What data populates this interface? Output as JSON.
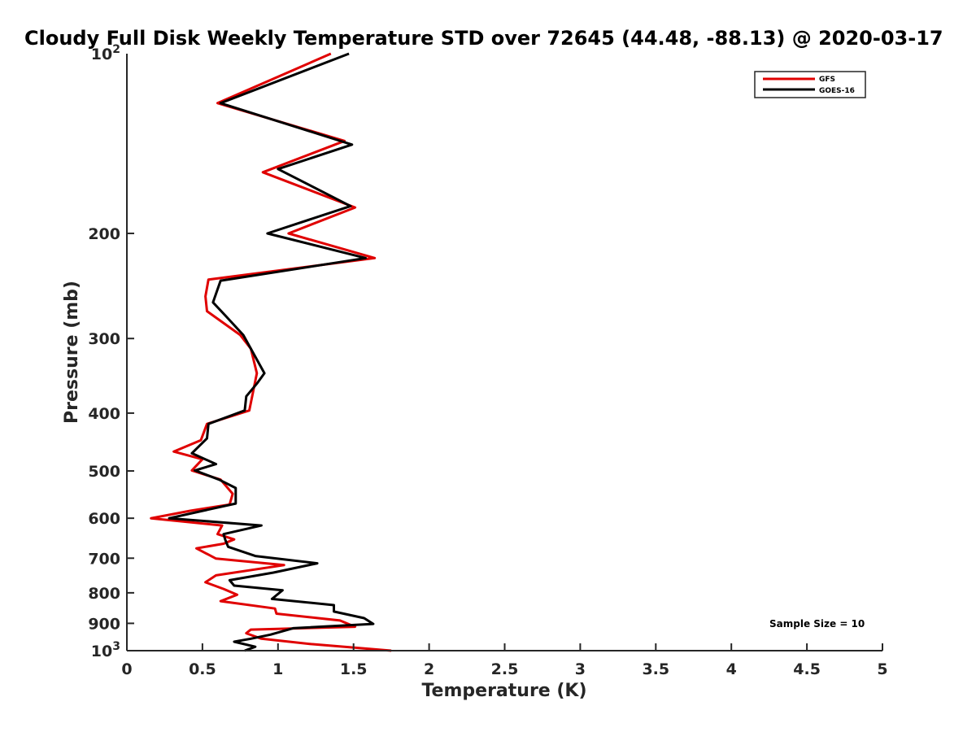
{
  "chart_data": {
    "type": "line",
    "title": "Cloudy Full Disk Weekly Temperature STD over 72645 (44.48, -88.13) @ 2020-03-17",
    "xlabel": "Temperature (K)",
    "ylabel": "Pressure (mb)",
    "xlim": [
      0,
      5
    ],
    "ylim": [
      100,
      1000
    ],
    "y_scale": "log",
    "y_reversed": true,
    "grid": false,
    "legend_position": "top-right",
    "x_ticks": [
      "0",
      "0.5",
      "1",
      "1.5",
      "2",
      "2.5",
      "3",
      "3.5",
      "4",
      "4.5",
      "5"
    ],
    "y_ticks": [
      {
        "value": 100,
        "base": "10",
        "exp": "2"
      },
      {
        "value": 200,
        "label": "200"
      },
      {
        "value": 300,
        "label": "300"
      },
      {
        "value": 400,
        "label": "400"
      },
      {
        "value": 500,
        "label": "500"
      },
      {
        "value": 600,
        "label": "600"
      },
      {
        "value": 700,
        "label": "700"
      },
      {
        "value": 800,
        "label": "800"
      },
      {
        "value": 900,
        "label": "900"
      },
      {
        "value": 1000,
        "base": "10",
        "exp": "3"
      }
    ],
    "annotation": "Sample Size = 10",
    "series": [
      {
        "name": "GFS",
        "color": "#e00000",
        "points": [
          [
            1.35,
            100
          ],
          [
            0.6,
            121
          ],
          [
            1.44,
            140
          ],
          [
            0.9,
            158
          ],
          [
            1.51,
            181
          ],
          [
            1.07,
            200
          ],
          [
            1.64,
            220
          ],
          [
            0.54,
            239
          ],
          [
            0.52,
            255
          ],
          [
            0.53,
            270
          ],
          [
            0.75,
            296
          ],
          [
            0.82,
            312
          ],
          [
            0.86,
            343
          ],
          [
            0.81,
            396
          ],
          [
            0.53,
            417
          ],
          [
            0.49,
            444
          ],
          [
            0.31,
            464
          ],
          [
            0.5,
            478
          ],
          [
            0.43,
            499
          ],
          [
            0.62,
            517
          ],
          [
            0.7,
            546
          ],
          [
            0.68,
            569
          ],
          [
            0.42,
            583
          ],
          [
            0.16,
            600
          ],
          [
            0.63,
            617
          ],
          [
            0.6,
            638
          ],
          [
            0.71,
            651
          ],
          [
            0.64,
            662
          ],
          [
            0.46,
            674
          ],
          [
            0.59,
            701
          ],
          [
            1.04,
            719
          ],
          [
            0.59,
            748
          ],
          [
            0.52,
            768
          ],
          [
            0.64,
            788
          ],
          [
            0.73,
            806
          ],
          [
            0.62,
            826
          ],
          [
            0.98,
            850
          ],
          [
            0.99,
            867
          ],
          [
            1.41,
            890
          ],
          [
            1.51,
            912
          ],
          [
            0.82,
            922
          ],
          [
            0.79,
            935
          ],
          [
            0.89,
            955
          ],
          [
            1.22,
            975
          ],
          [
            1.75,
            1000
          ]
        ]
      },
      {
        "name": "GOES-16",
        "color": "#000000",
        "points": [
          [
            1.47,
            100
          ],
          [
            0.62,
            121
          ],
          [
            1.49,
            142
          ],
          [
            1.0,
            156
          ],
          [
            1.48,
            180
          ],
          [
            0.93,
            200
          ],
          [
            1.58,
            220
          ],
          [
            0.62,
            240
          ],
          [
            0.57,
            261
          ],
          [
            0.66,
            276
          ],
          [
            0.77,
            296
          ],
          [
            0.91,
            343
          ],
          [
            0.86,
            357
          ],
          [
            0.79,
            375
          ],
          [
            0.78,
            396
          ],
          [
            0.54,
            417
          ],
          [
            0.53,
            441
          ],
          [
            0.43,
            467
          ],
          [
            0.59,
            487
          ],
          [
            0.45,
            499
          ],
          [
            0.61,
            517
          ],
          [
            0.72,
            534
          ],
          [
            0.72,
            567
          ],
          [
            0.28,
            600
          ],
          [
            0.89,
            617
          ],
          [
            0.64,
            638
          ],
          [
            0.65,
            651
          ],
          [
            0.67,
            670
          ],
          [
            0.85,
            694
          ],
          [
            1.26,
            714
          ],
          [
            0.97,
            740
          ],
          [
            0.68,
            762
          ],
          [
            0.71,
            778
          ],
          [
            1.03,
            792
          ],
          [
            0.96,
            819
          ],
          [
            1.37,
            839
          ],
          [
            1.37,
            860
          ],
          [
            1.57,
            882
          ],
          [
            1.63,
            902
          ],
          [
            1.1,
            917
          ],
          [
            0.95,
            940
          ],
          [
            0.82,
            955
          ],
          [
            0.71,
            966
          ],
          [
            0.85,
            985
          ],
          [
            0.78,
            1000
          ]
        ]
      }
    ]
  }
}
